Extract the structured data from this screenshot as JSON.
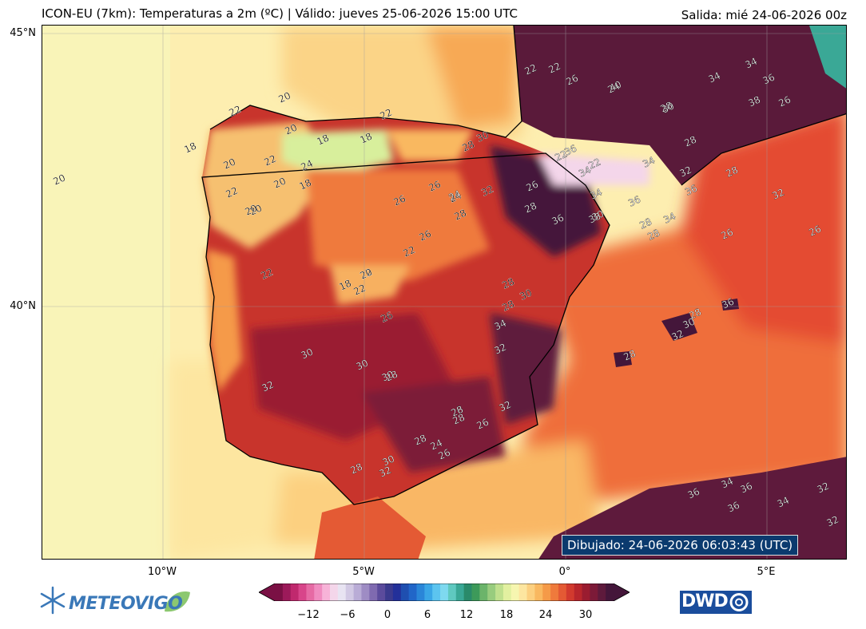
{
  "header": {
    "title": "ICON-EU (7km): Temperaturas a 2m (ºC) | Válido: jueves 25-06-2026 15:00 UTC",
    "run": "Salida: mié 24-06-2026 00z"
  },
  "map": {
    "lat_labels": [
      "45°N",
      "40°N"
    ],
    "lon_labels": [
      "10°W",
      "5°W",
      "0°",
      "5°E"
    ],
    "timestamp": "Dibujado: 24-06-2026 06:03:43 (UTC)",
    "contour_labels": [
      "20",
      "22",
      "20",
      "20",
      "18",
      "18",
      "22",
      "18",
      "20",
      "22",
      "24",
      "18",
      "22",
      "20",
      "20",
      "20",
      "22",
      "26",
      "28",
      "30",
      "26",
      "24",
      "28",
      "32",
      "22",
      "22",
      "26",
      "20",
      "18",
      "22",
      "26",
      "28",
      "28",
      "30",
      "30",
      "30",
      "28",
      "32",
      "34",
      "32",
      "30",
      "28",
      "26",
      "32",
      "28",
      "26",
      "28",
      "24",
      "26",
      "28",
      "30",
      "32",
      "26",
      "22",
      "22",
      "28",
      "24",
      "34",
      "36",
      "38",
      "40",
      "30",
      "28",
      "36",
      "30",
      "28",
      "36",
      "34",
      "34",
      "36",
      "32",
      "22",
      "22",
      "26",
      "24",
      "28",
      "34",
      "34",
      "36",
      "38",
      "26",
      "28",
      "32",
      "34",
      "28",
      "30",
      "28",
      "28",
      "26",
      "26",
      "32",
      "36",
      "34",
      "36",
      "34",
      "32",
      "32",
      "36",
      "36",
      "34"
    ]
  },
  "colorbar": {
    "ticks": [
      "−12",
      "−6",
      "0",
      "6",
      "12",
      "18",
      "24",
      "30"
    ],
    "colors": [
      "#7a1044",
      "#9c1a5a",
      "#c0296e",
      "#d8458a",
      "#e66aa4",
      "#f08cc0",
      "#f7b3d8",
      "#f4d6ea",
      "#e8e4f2",
      "#d2c9e4",
      "#b9acd6",
      "#9e8cc4",
      "#7f6ab0",
      "#5b4b9c",
      "#3b3a8e",
      "#23309a",
      "#1f4fb0",
      "#2166c8",
      "#2a86d8",
      "#3aa6e6",
      "#5cc4ef",
      "#7ed9ef",
      "#5fc9c0",
      "#3aa896",
      "#2a8a6a",
      "#3d9a5a",
      "#6bb46a",
      "#98cc7e",
      "#c0e08e",
      "#e2f0a0",
      "#f6f6b0",
      "#fde6a0",
      "#fcd080",
      "#f9b860",
      "#f59a48",
      "#ef7a3c",
      "#e45a34",
      "#d23a2e",
      "#b8262c",
      "#9a1c30",
      "#7c1a38",
      "#5e1a3c",
      "#44163a"
    ]
  },
  "logos": {
    "left_text": "METEOVIGO",
    "right_text": "DWD"
  }
}
